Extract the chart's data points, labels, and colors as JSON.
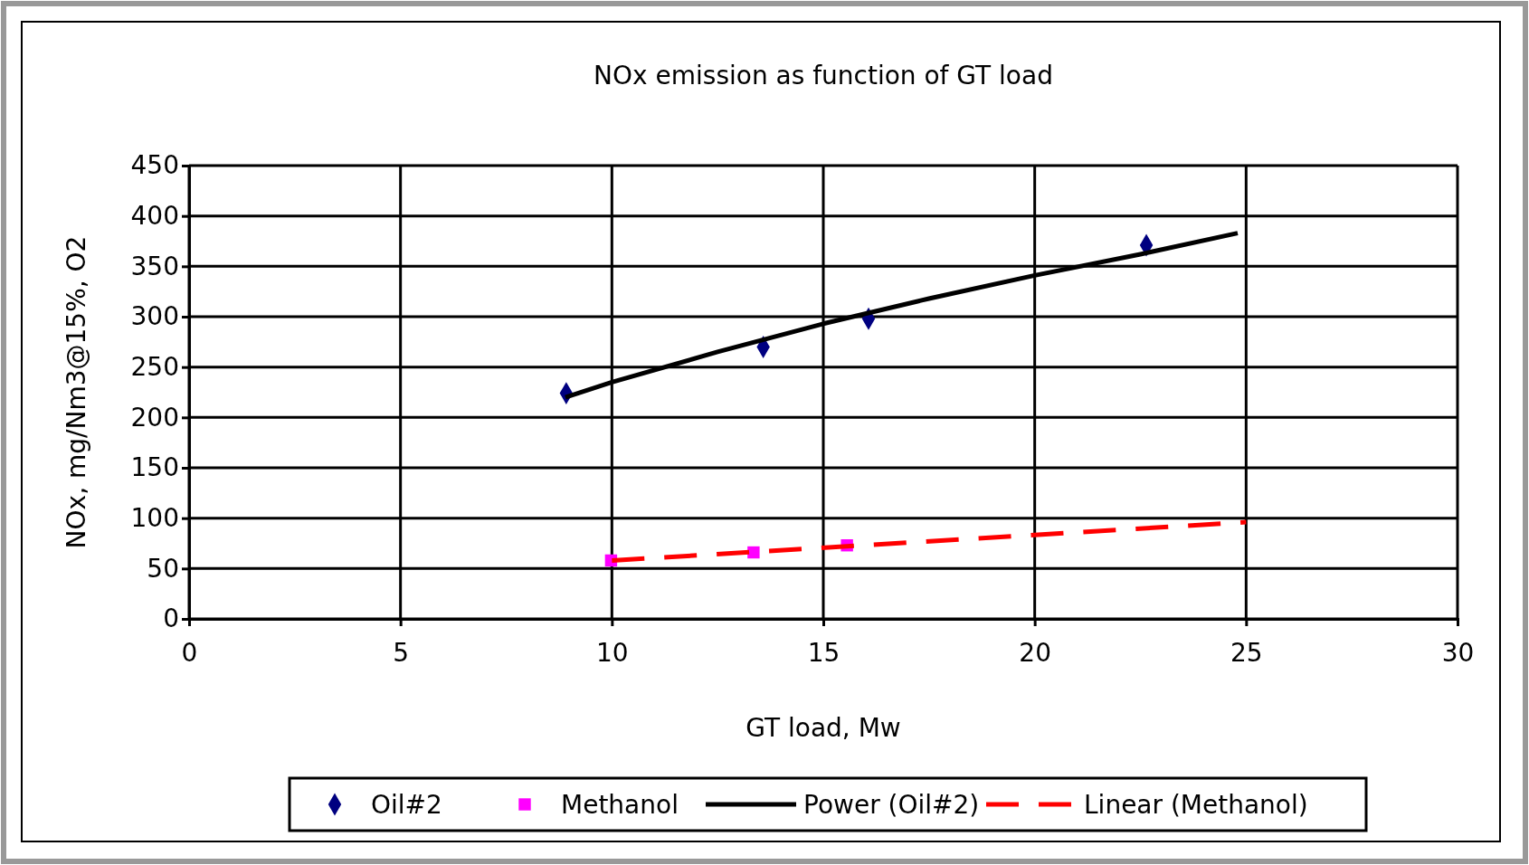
{
  "chart_data": {
    "type": "scatter",
    "title": "NOx emission as function of GT load",
    "xlabel": "GT load, Mw",
    "ylabel": "NOx, mg/Nm3@15%, O2",
    "xlim": [
      0,
      30
    ],
    "xticks": [
      0,
      5,
      10,
      15,
      20,
      25,
      30
    ],
    "ylim": [
      0,
      450
    ],
    "yticks": [
      0,
      50,
      100,
      150,
      200,
      250,
      300,
      350,
      400,
      450
    ],
    "grid": true,
    "legend": "bottom",
    "series": [
      {
        "name": "Oil#2",
        "marker": "diamond",
        "color": "#000080",
        "x": [
          8.92,
          13.58,
          16.07,
          22.64
        ],
        "values": [
          224,
          270,
          298,
          371
        ]
      },
      {
        "name": "Methanol",
        "marker": "square",
        "color": "#ff00ff",
        "x": [
          9.98,
          13.35,
          15.56
        ],
        "values": [
          58,
          66,
          73
        ]
      },
      {
        "name": "Power (Oil#2)",
        "type": "line",
        "marker": "none",
        "line_style": "solid",
        "color": "#000000",
        "x": [
          8.9,
          10,
          12.5,
          15,
          17.5,
          20,
          22.5,
          24.8
        ],
        "values": [
          220,
          235,
          265,
          293,
          318,
          341,
          362,
          383
        ]
      },
      {
        "name": "Linear (Methanol)",
        "type": "line",
        "marker": "none",
        "line_style": "dashed",
        "color": "#ff0000",
        "x": [
          10,
          25
        ],
        "values": [
          58,
          96
        ]
      }
    ]
  }
}
